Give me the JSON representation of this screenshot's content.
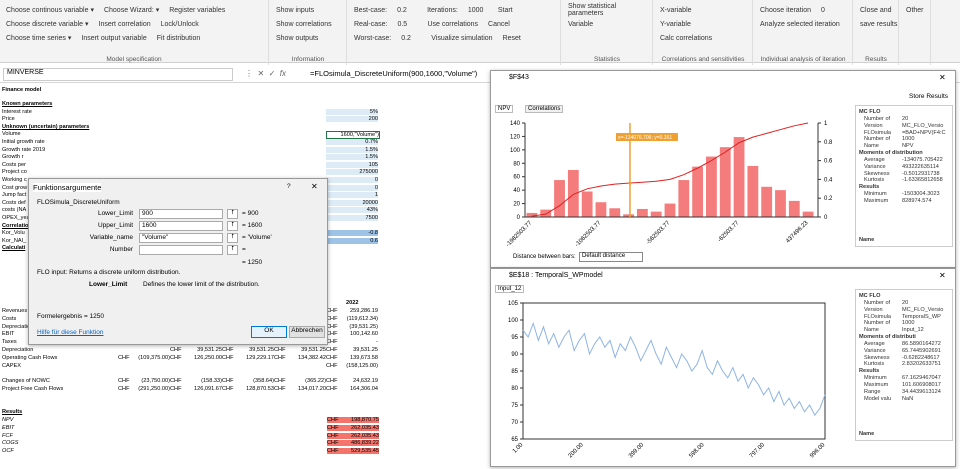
{
  "ribbon": {
    "groups": [
      {
        "label": "Model specification",
        "rows": [
          [
            "Choose continous variable ▾",
            "Choose Wizard: ▾",
            "Register variables"
          ],
          [
            "Choose discrete variable ▾",
            "Insert correlation",
            "Lock/Unlock"
          ],
          [
            "Choose time series ▾",
            "Insert output variable",
            "Fit distribution"
          ]
        ]
      },
      {
        "label": "Information",
        "rows": [
          [
            "Show inputs"
          ],
          [
            "Show correlations"
          ],
          [
            "Show outputs"
          ]
        ]
      },
      {
        "rows": [
          [
            "Best-case:",
            "0.2",
            "Iterations:",
            "1000",
            "Start"
          ],
          [
            "Real-case:",
            "0.5",
            "Use correlations",
            "Cancel"
          ],
          [
            "Worst-case:",
            "0.2",
            "Visualize simulation",
            "Reset"
          ]
        ]
      },
      {
        "label": "Statistics",
        "rows": [
          [
            "Show statistical parameters"
          ],
          [
            "Variable"
          ]
        ]
      },
      {
        "label": "Correlations and sensitivities",
        "rows": [
          [
            "X-variable"
          ],
          [
            "Y-variable"
          ],
          [
            "Calc correlations"
          ]
        ]
      },
      {
        "label": "Individual analysis of iteration",
        "rows": [
          [
            "Choose iteration",
            "0"
          ],
          [
            "Analyze selected iteration"
          ]
        ]
      },
      {
        "label": "Results",
        "rows": [
          [
            "Close and"
          ],
          [
            "save results"
          ]
        ]
      },
      {
        "rows": [
          [
            "Other"
          ]
        ]
      }
    ]
  },
  "formula_bar": {
    "name_box": "MINVERSE",
    "formula": "=FLOsimula_DiscreteUniform(900,1600,\"Volume\")"
  },
  "sheet": {
    "title": "Finance model",
    "parameters": [
      [
        "Known parameters"
      ],
      [
        "Interest rate",
        "5%"
      ],
      [
        "Price",
        "200"
      ],
      [
        "Unknown (uncertain) parameters"
      ],
      [
        "Volume",
        "1600,\"Volume\")"
      ],
      [
        "Initial growth rate",
        "0.7%"
      ],
      [
        "Growth rate 2019",
        "1.5%"
      ],
      [
        "Growth r",
        "1.5%"
      ],
      [
        "Costs per",
        "105"
      ],
      [
        "Project co",
        "275000"
      ],
      [
        "Working c",
        "0"
      ],
      [
        "Cost grow",
        "0"
      ],
      [
        "Jump fact",
        "1"
      ],
      [
        "Costs def",
        "20000"
      ],
      [
        "costs (NA",
        "43%"
      ],
      [
        "OPEX_yea",
        "7500"
      ],
      [
        "Correlatio"
      ],
      [
        "Kor_Volu",
        "-0.8"
      ],
      [
        "Kor_NAI_",
        "0.6"
      ],
      [
        "Calculati"
      ]
    ],
    "year": "2022",
    "cashflow": [
      [
        "Revenues",
        "CHF",
        "259,286.19"
      ],
      [
        "Costs",
        "CHF",
        "(119,612.34)"
      ],
      [
        "Depreciation",
        "CHF",
        "(39,531.25)"
      ],
      [
        "EBIT",
        "CHF",
        "100,142.60"
      ],
      [
        "Taxes",
        "CHF",
        "-",
        "CHF",
        "-",
        "CHF",
        "-",
        "CHF",
        "-",
        "CHF",
        "-"
      ],
      [
        "Depreciation",
        "CHF",
        "39,531.25",
        "CHF",
        "39,531.25",
        "CHF",
        "39,531.25",
        "CHF",
        "39,531.25"
      ],
      [
        "Operating Cash Flows",
        "CHF",
        "(109,375.00)",
        "CHF",
        "126,250.00",
        "CHF",
        "129,229.17",
        "CHF",
        "134,382.42",
        "CHF",
        "139,673.58"
      ],
      [
        "CAPEX",
        "CHF",
        "(158,125.00)"
      ],
      [
        "Changes of NOWC",
        "CHF",
        "(23,750.00)",
        "CHF",
        "(158.33)",
        "CHF",
        "(358.64)",
        "CHF",
        "(365.22)",
        "CHF",
        "24,632.19"
      ],
      [
        "Project Free Cash Flows",
        "CHF",
        "(291,250.00)",
        "CHF",
        "126,091.67",
        "CHF",
        "128,870.53",
        "CHF",
        "134,017.20",
        "CHF",
        "164,306.04"
      ]
    ],
    "results_title": "Results",
    "results": [
      [
        "NPV",
        "CHF",
        "198,870.75"
      ],
      [
        "EBIT",
        "CHF",
        "262,035.43"
      ],
      [
        "FCF",
        "CHF",
        "262,035.43"
      ],
      [
        "COGS",
        "CHF",
        "486,839.22"
      ],
      [
        "OCF",
        "CHF",
        "529,535.45"
      ]
    ]
  },
  "dialog": {
    "title": "Funktionsargumente",
    "help_icon": "?",
    "function": "FLOSimula_DiscreteUniform",
    "args": [
      {
        "name": "Lower_Limit",
        "input": "900",
        "result": "= 900"
      },
      {
        "name": "Upper_Limit",
        "input": "1600",
        "result": "= 1600"
      },
      {
        "name": "Variable_name",
        "input": "\"Volume\"",
        "result": "= 'Volume'"
      },
      {
        "name": "Number",
        "result": "="
      }
    ],
    "result": "= 1250",
    "description": "FLO input: Returns a discrete uniform distribution.",
    "arg_name": "Lower_Limit",
    "arg_description": "Defines the lower limit of the distribution.",
    "formula_result": "Formelergebnis =  1250",
    "help_link": "Hilfe für diese Funktion",
    "ok": "OK",
    "cancel": "Abbrechen"
  },
  "windows": [
    {
      "title": "$F$43",
      "store": "Store Results",
      "tabs": [
        "NPV",
        "Correlations"
      ],
      "distance_label": "Distance between bars:",
      "distance_value": "Default distance",
      "chart": {
        "type": "histogram",
        "color": "#f47c7c",
        "line_color": "#e02020",
        "values": [
          6,
          11,
          55,
          70,
          38,
          22,
          13,
          4,
          12,
          8,
          20,
          55,
          75,
          90,
          104,
          119,
          76,
          45,
          40,
          24,
          8
        ],
        "cdf": [
          0.01,
          0.03,
          0.12,
          0.24,
          0.3,
          0.33,
          0.35,
          0.36,
          0.37,
          0.38,
          0.4,
          0.45,
          0.52,
          0.6,
          0.69,
          0.79,
          0.85,
          0.89,
          0.93,
          0.97,
          1
        ],
        "ylim": [
          0,
          140
        ],
        "yticks": [
          0,
          20,
          40,
          60,
          80,
          100,
          120,
          140
        ],
        "y2lim": [
          0,
          1
        ],
        "y2ticks": [
          0,
          0.2,
          0.4,
          0.6,
          0.8,
          1
        ],
        "xtick_labels": [
          "-1982503.77",
          "-1062503.77",
          "-562503.77",
          "-62503.77",
          "437496.23"
        ],
        "marker": {
          "label": "x=-134076.706; y=0.361",
          "y": 0.361
        }
      },
      "panel": {
        "sections": [
          {
            "title": "MC FLO",
            "props": [
              [
                "Number of",
                "20"
              ],
              [
                "Version",
                "MC_FLO_Versio"
              ],
              [
                "FLOsimula",
                "=BAD+NPV(F4:C"
              ],
              [
                "Number of",
                "1000"
              ],
              [
                "Name",
                "NPV"
              ]
            ]
          },
          {
            "title": "Moments of distribution",
            "props": [
              [
                "Average",
                "-134075.705422"
              ],
              [
                "Variance",
                "493222635114"
              ],
              [
                "Skewness",
                "-0.5012931738"
              ],
              [
                "Kurtosis",
                "-1.63365812658"
              ]
            ]
          },
          {
            "title": "Results",
            "props": [
              [
                "Minimum",
                "-1503004.3023"
              ],
              [
                "Maximum",
                "828974.574"
              ]
            ]
          }
        ],
        "footer": "Name"
      }
    },
    {
      "title": "$E$18 : TemporalS_WPmodel",
      "tabs": [
        "Input_12"
      ],
      "chart": {
        "type": "line",
        "color": "#8fb4e3",
        "values": [
          97,
          95,
          99,
          94,
          98,
          93,
          96,
          92,
          95,
          97,
          91,
          94,
          96,
          90,
          93,
          95,
          92,
          94,
          89,
          93,
          91,
          95,
          92,
          88,
          91,
          94,
          90,
          87,
          92,
          89,
          86,
          90,
          88,
          85,
          87,
          91,
          86,
          84,
          88,
          85,
          83,
          86,
          82,
          84,
          80,
          83,
          81,
          78,
          80,
          76,
          79,
          75,
          77,
          74,
          76,
          73,
          75,
          72,
          74,
          78
        ],
        "ylim": [
          65,
          105
        ],
        "yticks": [
          65,
          70,
          75,
          80,
          85,
          90,
          95,
          100,
          105
        ],
        "xtick_labels": [
          "1.00",
          "200.00",
          "399.00",
          "598.00",
          "797.00",
          "996.00"
        ]
      },
      "panel": {
        "sections": [
          {
            "title": "MC FLO",
            "props": [
              [
                "Number of",
                "20"
              ],
              [
                "Version",
                "MC_FLO_Versio"
              ],
              [
                "FLOsimula",
                "TemporalS_WP"
              ],
              [
                "Number of",
                "1000"
              ],
              [
                "Name",
                "Input_12"
              ]
            ]
          },
          {
            "title": "Moments of distributi",
            "props": [
              [
                "Average",
                "86.5890164272"
              ],
              [
                "Variance",
                "65.7445902691"
              ],
              [
                "Skewness",
                "-0.6282248617"
              ],
              [
                "Kurtosis",
                "2.83202633751"
              ]
            ]
          },
          {
            "title": "Results",
            "props": [
              [
                "Minimum",
                "67.1629467047"
              ],
              [
                "Maximum",
                "101.606908017"
              ],
              [
                "Range",
                "34.4439613124"
              ],
              [
                "Model valu",
                "NaN"
              ]
            ]
          }
        ],
        "footer": "Name"
      }
    }
  ]
}
